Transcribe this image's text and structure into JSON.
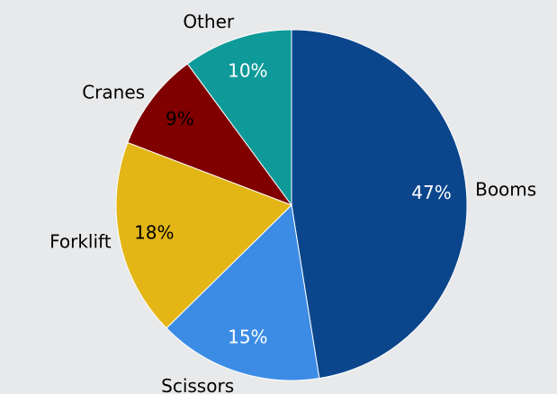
{
  "chart_data": {
    "type": "pie",
    "categories": [
      "Booms",
      "Scissors",
      "Forklift",
      "Cranes",
      "Other"
    ],
    "values": [
      47,
      15,
      18,
      9,
      10
    ],
    "value_labels": [
      "47%",
      "15%",
      "18%",
      "9%",
      "10%"
    ],
    "colors": [
      "#0b468c",
      "#3c8ce6",
      "#e3b616",
      "#800000",
      "#0f9a9a"
    ],
    "value_label_colors": [
      "#ffffff",
      "#ffffff",
      "#000000",
      "#000000",
      "#ffffff"
    ]
  }
}
